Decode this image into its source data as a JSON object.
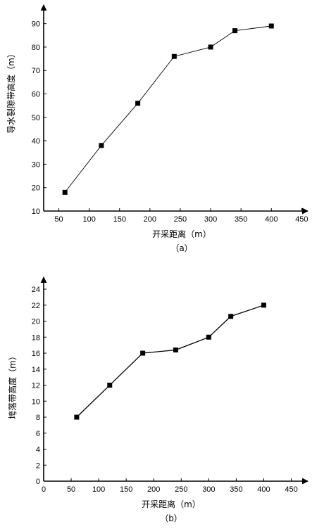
{
  "chart_data": [
    {
      "type": "line",
      "x": [
        60,
        120,
        180,
        240,
        300,
        340,
        400
      ],
      "y": [
        18,
        38,
        56,
        76,
        80,
        87,
        89
      ],
      "xlabel": "开采距离（m）",
      "ylabel": "导水裂隙带高度（m）",
      "caption": "（a）",
      "xlim": [
        25,
        460
      ],
      "ylim": [
        10,
        98
      ],
      "xticks": [
        50,
        100,
        150,
        200,
        250,
        300,
        350,
        400,
        450
      ],
      "yticks": [
        10,
        20,
        30,
        40,
        50,
        60,
        70,
        80,
        90
      ],
      "marker": "square",
      "grid": false
    },
    {
      "type": "line",
      "x": [
        60,
        120,
        180,
        240,
        300,
        340,
        400
      ],
      "y": [
        8,
        12,
        16,
        16.4,
        18,
        20.6,
        22
      ],
      "xlabel": "开采距离（m）",
      "ylabel": "垮落带高度（m）",
      "caption": "（b）",
      "xlim": [
        0,
        480
      ],
      "ylim": [
        0,
        25.5
      ],
      "xticks": [
        0,
        50,
        100,
        150,
        200,
        250,
        300,
        350,
        400,
        450
      ],
      "yticks": [
        0,
        2,
        4,
        6,
        8,
        10,
        12,
        14,
        16,
        18,
        20,
        22,
        24
      ],
      "marker": "square",
      "grid": false
    }
  ]
}
